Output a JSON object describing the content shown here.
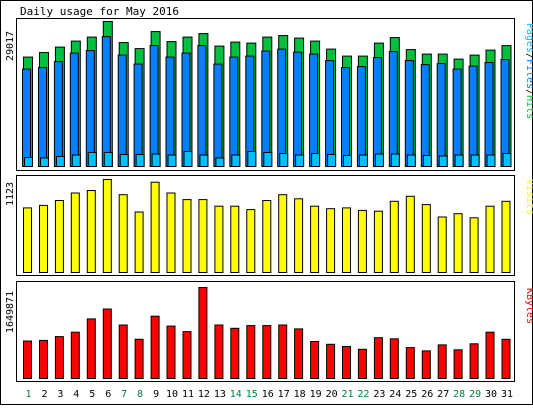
{
  "title": "Daily usage for May 2016",
  "colors": {
    "background": "#ffffff",
    "frame": "#000000",
    "hits": "#00c040",
    "files": "#0080ff",
    "pages": "#00c0ff",
    "visits": "#ffff00",
    "kbytes": "#ff0000",
    "weekday_label": "#000000",
    "weekend_label": "#008040"
  },
  "panels": {
    "top": {
      "max_label": "29017",
      "legend": [
        {
          "text": "Pages",
          "color": "#00c0ff"
        },
        {
          "text": "/",
          "color": "#000000"
        },
        {
          "text": "Files",
          "color": "#0080ff"
        },
        {
          "text": "/",
          "color": "#000000"
        },
        {
          "text": "Hits",
          "color": "#00c040"
        }
      ]
    },
    "middle": {
      "max_label": "1123",
      "legend": [
        {
          "text": "Visits",
          "color": "#ffff00"
        }
      ]
    },
    "bottom": {
      "max_label": "1649871",
      "legend": [
        {
          "text": "KBytes",
          "color": "#ff0000"
        }
      ]
    }
  },
  "chart_data": {
    "type": "bar",
    "title": "Daily usage for May 2016",
    "categories": [
      "1",
      "2",
      "3",
      "4",
      "5",
      "6",
      "7",
      "8",
      "9",
      "10",
      "11",
      "12",
      "13",
      "14",
      "15",
      "16",
      "17",
      "18",
      "19",
      "20",
      "21",
      "22",
      "23",
      "24",
      "25",
      "26",
      "27",
      "28",
      "29",
      "30",
      "31"
    ],
    "weekend_days": [
      "1",
      "7",
      "8",
      "14",
      "15",
      "21",
      "22",
      "28",
      "29"
    ],
    "charts": [
      {
        "name": "hits_files_pages",
        "ylim": [
          0,
          29017
        ],
        "series": [
          {
            "name": "Hits",
            "values": [
              21900,
              22800,
              23900,
              25100,
              25900,
              29017,
              24800,
              23600,
              27000,
              25000,
              25900,
              26600,
              24100,
              24900,
              24700,
              25900,
              26200,
              25700,
              25100,
              23500,
              22100,
              22100,
              24700,
              25800,
              23400,
              22500,
              22500,
              21500,
              22300,
              23300,
              24200
            ]
          },
          {
            "name": "Files",
            "values": [
              19500,
              19800,
              21000,
              22700,
              23200,
              26000,
              22300,
              20500,
              24200,
              21900,
              22700,
              24200,
              20500,
              21900,
              22100,
              23100,
              23500,
              22900,
              22500,
              21200,
              19800,
              20000,
              21800,
              23000,
              21200,
              20400,
              20600,
              19500,
              20100,
              20800,
              21400
            ]
          },
          {
            "name": "Pages",
            "values": [
              1800,
              1700,
              2000,
              2300,
              2800,
              2800,
              2400,
              2400,
              2500,
              2300,
              3000,
              2300,
              1700,
              2300,
              3000,
              2800,
              2600,
              2300,
              2600,
              2400,
              2200,
              2300,
              2500,
              2500,
              2300,
              2200,
              2100,
              2300,
              2300,
              2300,
              2600
            ]
          }
        ]
      },
      {
        "name": "visits",
        "ylim": [
          0,
          1123
        ],
        "series": [
          {
            "name": "Visits",
            "values": [
              780,
              810,
              870,
              960,
              990,
              1123,
              940,
              730,
              1090,
              960,
              880,
              880,
              800,
              800,
              760,
              870,
              940,
              890,
              800,
              770,
              780,
              750,
              740,
              860,
              920,
              820,
              670,
              710,
              660,
              800,
              860
            ]
          }
        ]
      },
      {
        "name": "kbytes",
        "ylim": [
          0,
          1649871
        ],
        "series": [
          {
            "name": "KBytes",
            "values": [
              680000,
              690000,
              760000,
              840000,
              1080000,
              1260000,
              970000,
              710000,
              1130000,
              950000,
              850000,
              1649871,
              970000,
              910000,
              960000,
              960000,
              970000,
              900000,
              670000,
              620000,
              580000,
              530000,
              740000,
              720000,
              560000,
              500000,
              610000,
              520000,
              630000,
              840000,
              710000
            ]
          }
        ]
      }
    ]
  }
}
